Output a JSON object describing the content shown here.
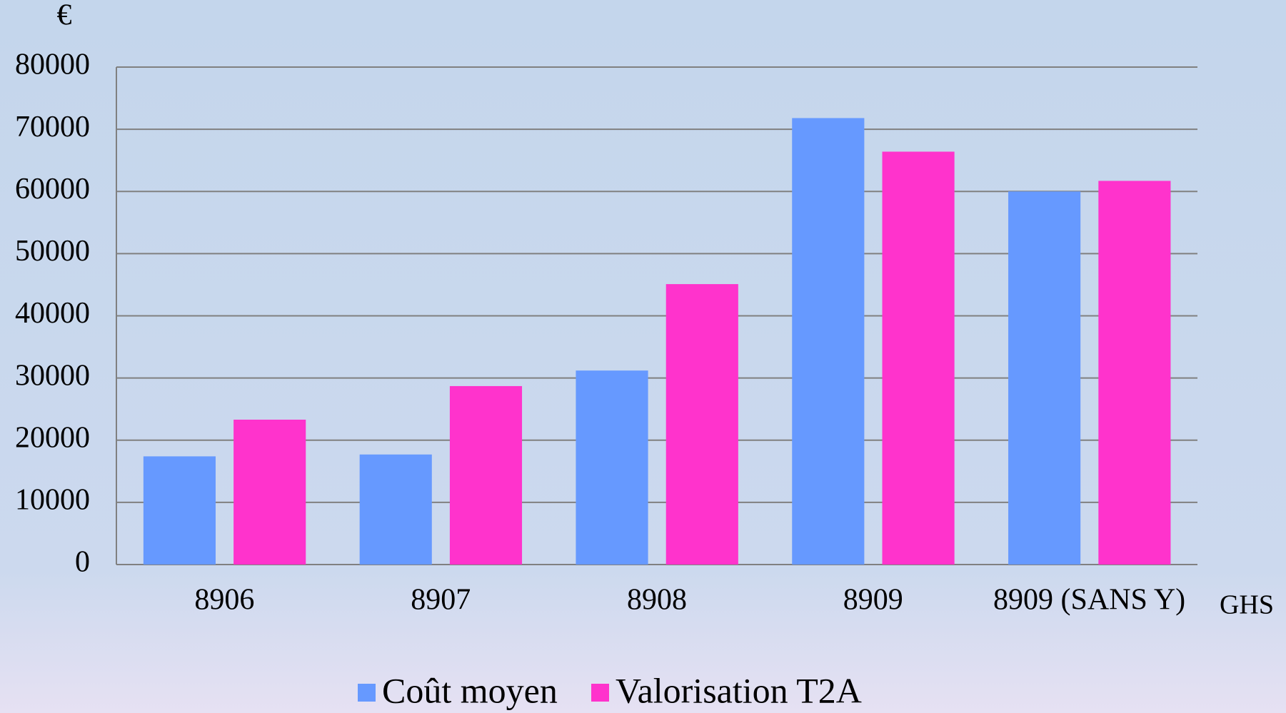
{
  "chart_data": {
    "type": "bar",
    "y_label": "€",
    "x_label": "GHS",
    "categories": [
      "8906",
      "8907",
      "8908",
      "8909",
      "8909 (SANS Y)"
    ],
    "series": [
      {
        "name": "Coût moyen",
        "color": "#6699ff",
        "values": [
          17400,
          17700,
          31200,
          71800,
          60000
        ]
      },
      {
        "name": "Valorisation T2A",
        "color": "#ff33cc",
        "values": [
          23300,
          28700,
          45100,
          66400,
          61700
        ]
      }
    ],
    "ylim": [
      0,
      80000
    ],
    "yticks": [
      0,
      10000,
      20000,
      30000,
      40000,
      50000,
      60000,
      70000,
      80000
    ],
    "grid": true,
    "legend": "bottom"
  }
}
